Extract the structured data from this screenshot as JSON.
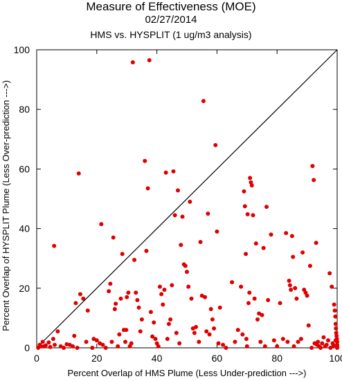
{
  "chart_data": {
    "type": "scatter",
    "title": "Measure of Effectiveness (MOE)",
    "subtitle_date": "02/27/2014",
    "subtitle": "HMS vs. HYSPLIT  (1 ug/m3 analysis)",
    "xlabel": "Percent Overlap of HMS Plume (Less Under-prediction --->)",
    "ylabel": "Percent Overlap of HYSPLIT Plume (Less Over-prediction --->)",
    "xlim": [
      0,
      100
    ],
    "ylim": [
      0,
      100
    ],
    "xticks": [
      0,
      20,
      40,
      60,
      80,
      100
    ],
    "yticks": [
      0,
      20,
      40,
      60,
      80,
      100
    ],
    "reference_line": {
      "from": [
        0,
        0
      ],
      "to": [
        100,
        100
      ]
    },
    "grid": false,
    "marker_color": "#e00000",
    "points": [
      [
        0.5,
        0
      ],
      [
        1,
        1
      ],
      [
        1.5,
        0.5
      ],
      [
        2,
        2
      ],
      [
        2.5,
        0.5
      ],
      [
        3,
        0.8
      ],
      [
        4,
        1.8
      ],
      [
        4.5,
        0.3
      ],
      [
        5.5,
        3
      ],
      [
        5.8,
        34.2
      ],
      [
        6,
        1
      ],
      [
        7,
        5.5
      ],
      [
        8,
        0.5
      ],
      [
        9,
        0
      ],
      [
        10,
        1.2
      ],
      [
        11,
        1
      ],
      [
        12,
        0.5
      ],
      [
        12.5,
        4
      ],
      [
        13,
        15
      ],
      [
        13.5,
        0
      ],
      [
        14,
        58.5
      ],
      [
        14.5,
        18
      ],
      [
        15.5,
        16.5
      ],
      [
        16.5,
        2
      ],
      [
        17,
        12.5
      ],
      [
        18.5,
        0
      ],
      [
        19,
        3
      ],
      [
        20,
        2.5
      ],
      [
        21,
        1.5
      ],
      [
        21.5,
        41.5
      ],
      [
        22,
        1
      ],
      [
        23,
        0
      ],
      [
        24,
        19
      ],
      [
        24.5,
        21.5
      ],
      [
        25,
        2
      ],
      [
        25.5,
        37
      ],
      [
        26,
        13
      ],
      [
        26.3,
        14.8
      ],
      [
        27,
        0.5
      ],
      [
        27.5,
        4.5
      ],
      [
        28,
        16.5
      ],
      [
        28.5,
        31.5
      ],
      [
        29,
        6
      ],
      [
        29.5,
        2
      ],
      [
        29.8,
        6
      ],
      [
        30,
        17
      ],
      [
        30.5,
        18.5
      ],
      [
        31,
        0.5
      ],
      [
        31.5,
        1.5
      ],
      [
        32,
        95.8
      ],
      [
        32.5,
        29.5
      ],
      [
        33,
        18.5
      ],
      [
        33.5,
        16
      ],
      [
        34,
        13.5
      ],
      [
        34.5,
        5.5
      ],
      [
        35,
        9.5
      ],
      [
        36,
        62.7
      ],
      [
        36.5,
        32.5
      ],
      [
        37,
        53.5
      ],
      [
        37.5,
        96.5
      ],
      [
        38,
        12
      ],
      [
        38.5,
        3.8
      ],
      [
        39,
        8.5
      ],
      [
        39.5,
        3
      ],
      [
        40,
        1.5
      ],
      [
        40.5,
        0.5
      ],
      [
        41,
        20.5
      ],
      [
        41.5,
        18
      ],
      [
        42,
        14.5
      ],
      [
        42.5,
        19.5
      ],
      [
        43,
        58.8
      ],
      [
        43.5,
        3
      ],
      [
        44,
        8
      ],
      [
        44.5,
        9.5
      ],
      [
        45,
        21
      ],
      [
        45.5,
        59.2
      ],
      [
        46,
        44.5
      ],
      [
        46.5,
        5
      ],
      [
        47,
        52.8
      ],
      [
        47.5,
        1.5
      ],
      [
        48,
        34.5
      ],
      [
        48.5,
        44
      ],
      [
        49,
        28
      ],
      [
        49.5,
        27.5
      ],
      [
        50,
        25.5
      ],
      [
        50.5,
        20.5
      ],
      [
        51,
        49
      ],
      [
        51.5,
        16.5
      ],
      [
        52,
        6.5
      ],
      [
        52.5,
        5
      ],
      [
        53,
        7
      ],
      [
        54,
        2
      ],
      [
        54.5,
        35.5
      ],
      [
        55,
        17.5
      ],
      [
        55.5,
        82.8
      ],
      [
        56,
        17
      ],
      [
        56.5,
        5.5
      ],
      [
        57,
        45
      ],
      [
        57.5,
        4.5
      ],
      [
        58,
        13
      ],
      [
        58.5,
        9.5
      ],
      [
        59,
        6.5
      ],
      [
        59.5,
        68
      ],
      [
        60,
        39
      ],
      [
        60.5,
        1.5
      ],
      [
        61,
        13.5
      ],
      [
        62,
        1
      ],
      [
        63,
        0
      ],
      [
        65,
        22
      ],
      [
        66,
        2
      ],
      [
        67,
        6
      ],
      [
        68,
        20.5
      ],
      [
        68.5,
        4.5
      ],
      [
        69,
        52.5
      ],
      [
        69.3,
        47.5
      ],
      [
        69.6,
        31.5
      ],
      [
        69.8,
        3
      ],
      [
        70,
        0.5
      ],
      [
        70.2,
        44.8
      ],
      [
        70.5,
        15
      ],
      [
        70.8,
        18.5
      ],
      [
        71,
        57
      ],
      [
        71.3,
        55.5
      ],
      [
        71.6,
        54.5
      ],
      [
        72,
        44.5
      ],
      [
        72.5,
        16.5
      ],
      [
        73,
        35
      ],
      [
        73.5,
        9.5
      ],
      [
        74,
        11.5
      ],
      [
        74.5,
        2
      ],
      [
        75,
        11
      ],
      [
        75.5,
        33.5
      ],
      [
        76,
        0.5
      ],
      [
        76.5,
        47.3
      ],
      [
        77,
        16
      ],
      [
        78,
        38
      ],
      [
        79,
        2.5
      ],
      [
        80,
        0.5
      ],
      [
        81,
        15
      ],
      [
        82,
        3
      ],
      [
        83,
        38.5
      ],
      [
        83.5,
        2
      ],
      [
        84,
        22.5
      ],
      [
        84.3,
        21
      ],
      [
        84.6,
        19.5
      ],
      [
        85,
        37.5
      ],
      [
        85.3,
        30.5
      ],
      [
        85.6,
        0.5
      ],
      [
        86,
        20
      ],
      [
        86.5,
        16.5
      ],
      [
        87,
        2
      ],
      [
        88,
        3
      ],
      [
        88.5,
        32
      ],
      [
        89,
        19.5
      ],
      [
        89.5,
        18.5
      ],
      [
        90,
        17.5
      ],
      [
        90.5,
        7.5
      ],
      [
        91,
        27.5
      ],
      [
        91.5,
        0
      ],
      [
        91.8,
        61
      ],
      [
        92.2,
        56.3
      ],
      [
        92.5,
        1.5
      ],
      [
        93,
        35.2
      ],
      [
        93.3,
        1
      ],
      [
        93.6,
        2
      ],
      [
        94,
        0.5
      ],
      [
        94.5,
        0
      ],
      [
        95,
        1.5
      ],
      [
        95.5,
        3.5
      ],
      [
        96,
        0.5
      ],
      [
        96.5,
        1
      ],
      [
        97,
        2.5
      ],
      [
        97.5,
        25
      ],
      [
        97.8,
        0
      ],
      [
        98.2,
        20.5
      ],
      [
        98.5,
        1.5
      ],
      [
        98.8,
        0.8
      ],
      [
        99,
        14.5
      ],
      [
        99.2,
        12.5
      ],
      [
        99.4,
        10.5
      ],
      [
        99.5,
        8
      ],
      [
        99.6,
        6.5
      ],
      [
        99.7,
        5
      ],
      [
        99.8,
        4
      ],
      [
        99.9,
        3
      ],
      [
        100,
        2
      ],
      [
        100,
        1
      ],
      [
        100,
        0.5
      ],
      [
        100,
        0
      ],
      [
        99.5,
        2.5
      ]
    ]
  }
}
